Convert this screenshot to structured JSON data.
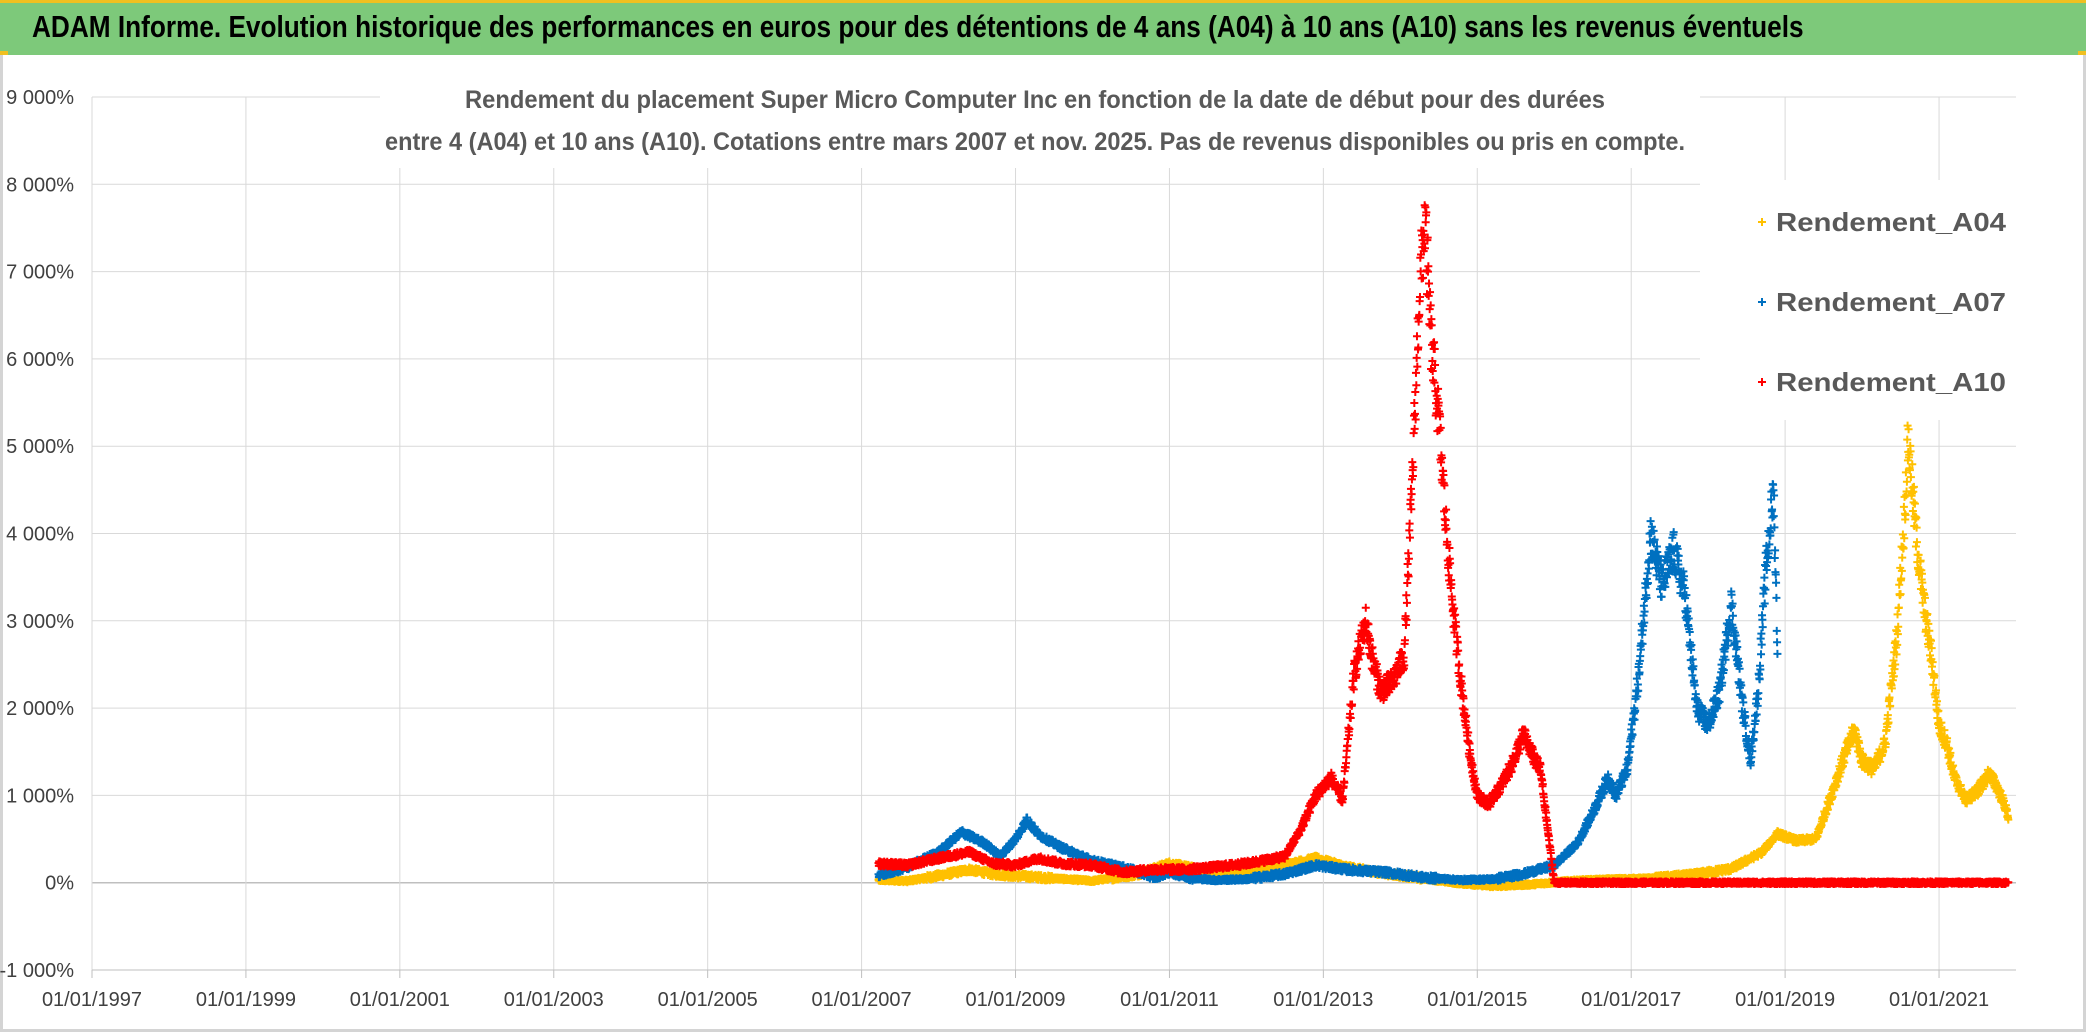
{
  "banner": {
    "title": "ADAM Informe. Evolution historique des performances en euros pour des détentions de 4 ans (A04) à 10 ans (A10) sans les revenus éventuels"
  },
  "colors": {
    "banner_bg": "#7dc97a",
    "grid": "#d9d9d9",
    "axis_text": "#404040",
    "title_text": "#595959"
  },
  "chart_data": {
    "type": "scatter",
    "marker": "plus",
    "title_line1": "Rendement du placement Super Micro Computer Inc en fonction de la date de début pour des durées",
    "title_line2": "entre 4 (A04) et 10 ans (A10). Cotations entre mars 2007 et nov. 2025. Pas de revenus disponibles ou pris en compte.",
    "ylim": [
      -10,
      90
    ],
    "y_ticks": [
      -10,
      0,
      10,
      20,
      30,
      40,
      50,
      60,
      70,
      80,
      90
    ],
    "y_tick_labels": [
      "-1 000%",
      "0%",
      "1 000%",
      "2 000%",
      "3 000%",
      "4 000%",
      "5 000%",
      "6 000%",
      "7 000%",
      "8 000%",
      "9 000%"
    ],
    "xlim": [
      1997.0,
      2022.0
    ],
    "x_ticks": [
      1997,
      1999,
      2001,
      2003,
      2005,
      2007,
      2009,
      2011,
      2013,
      2015,
      2017,
      2019,
      2021
    ],
    "x_tick_labels": [
      "01/01/1997",
      "01/01/1999",
      "01/01/2001",
      "01/01/2003",
      "01/01/2005",
      "01/01/2007",
      "01/01/2009",
      "01/01/2011",
      "01/01/2013",
      "01/01/2015",
      "01/01/2017",
      "01/01/2019",
      "01/01/2021"
    ],
    "grid": true,
    "legend_placement": "top-right",
    "series": [
      {
        "name": "Rendement_A04",
        "color": "#ffc000",
        "x_start": 2007.22,
        "x_end": 2021.9,
        "points": [
          [
            2007.22,
            0.3
          ],
          [
            2007.6,
            0.2
          ],
          [
            2008.0,
            0.8
          ],
          [
            2008.4,
            1.5
          ],
          [
            2008.7,
            1.0
          ],
          [
            2009.0,
            0.8
          ],
          [
            2009.5,
            0.5
          ],
          [
            2010.0,
            0.2
          ],
          [
            2010.6,
            1.0
          ],
          [
            2011.0,
            2.2
          ],
          [
            2011.5,
            1.3
          ],
          [
            2012.0,
            1.0
          ],
          [
            2012.5,
            2.0
          ],
          [
            2012.9,
            2.8
          ],
          [
            2013.3,
            1.8
          ],
          [
            2013.7,
            1.2
          ],
          [
            2014.2,
            0.6
          ],
          [
            2014.7,
            0.0
          ],
          [
            2015.2,
            -0.4
          ],
          [
            2015.7,
            -0.2
          ],
          [
            2016.2,
            0.2
          ],
          [
            2016.8,
            0.4
          ],
          [
            2017.3,
            0.5
          ],
          [
            2017.8,
            0.9
          ],
          [
            2018.3,
            1.6
          ],
          [
            2018.7,
            3.5
          ],
          [
            2018.9,
            5.6
          ],
          [
            2019.15,
            4.8
          ],
          [
            2019.4,
            5.0
          ],
          [
            2019.6,
            10.0
          ],
          [
            2019.75,
            14.0
          ],
          [
            2019.9,
            17.5
          ],
          [
            2020.0,
            14.0
          ],
          [
            2020.15,
            13.0
          ],
          [
            2020.3,
            16.0
          ],
          [
            2020.45,
            28.0
          ],
          [
            2020.55,
            42.0
          ],
          [
            2020.6,
            51.0
          ],
          [
            2020.7,
            40.0
          ],
          [
            2020.8,
            32.0
          ],
          [
            2020.9,
            26.0
          ],
          [
            2021.0,
            18.0
          ],
          [
            2021.1,
            16.0
          ],
          [
            2021.2,
            12.0
          ],
          [
            2021.35,
            9.5
          ],
          [
            2021.5,
            10.5
          ],
          [
            2021.65,
            12.5
          ],
          [
            2021.75,
            11.0
          ],
          [
            2021.85,
            9.0
          ],
          [
            2021.9,
            7.5
          ]
        ]
      },
      {
        "name": "Rendement_A07",
        "color": "#0070c0",
        "x_start": 2007.22,
        "x_end": 2018.9,
        "points": [
          [
            2007.22,
            0.8
          ],
          [
            2007.6,
            1.8
          ],
          [
            2008.0,
            3.5
          ],
          [
            2008.3,
            5.8
          ],
          [
            2008.6,
            4.5
          ],
          [
            2008.8,
            3.0
          ],
          [
            2009.0,
            5.0
          ],
          [
            2009.15,
            7.2
          ],
          [
            2009.3,
            5.5
          ],
          [
            2009.6,
            4.0
          ],
          [
            2010.0,
            2.5
          ],
          [
            2010.5,
            1.5
          ],
          [
            2010.8,
            0.6
          ],
          [
            2011.0,
            1.2
          ],
          [
            2011.3,
            0.5
          ],
          [
            2011.6,
            0.3
          ],
          [
            2012.0,
            0.4
          ],
          [
            2012.5,
            1.0
          ],
          [
            2012.9,
            2.0
          ],
          [
            2013.3,
            1.5
          ],
          [
            2013.8,
            1.2
          ],
          [
            2014.3,
            0.6
          ],
          [
            2014.8,
            0.3
          ],
          [
            2015.2,
            0.4
          ],
          [
            2015.6,
            1.0
          ],
          [
            2016.0,
            2.0
          ],
          [
            2016.3,
            4.5
          ],
          [
            2016.5,
            8.0
          ],
          [
            2016.7,
            12.0
          ],
          [
            2016.8,
            10.0
          ],
          [
            2016.95,
            13.0
          ],
          [
            2017.1,
            24.0
          ],
          [
            2017.25,
            40.0
          ],
          [
            2017.4,
            34.0
          ],
          [
            2017.55,
            38.0
          ],
          [
            2017.7,
            33.0
          ],
          [
            2017.85,
            20.0
          ],
          [
            2018.0,
            18.0
          ],
          [
            2018.15,
            22.0
          ],
          [
            2018.3,
            32.0
          ],
          [
            2018.45,
            20.0
          ],
          [
            2018.55,
            14.0
          ],
          [
            2018.65,
            22.0
          ],
          [
            2018.75,
            36.0
          ],
          [
            2018.85,
            45.0
          ],
          [
            2018.9,
            27.0
          ]
        ]
      },
      {
        "name": "Rendement_A10",
        "color": "#ff0000",
        "x_start": 2007.22,
        "x_end": 2021.9,
        "points": [
          [
            2007.22,
            2.2
          ],
          [
            2007.6,
            2.0
          ],
          [
            2008.0,
            2.8
          ],
          [
            2008.4,
            3.5
          ],
          [
            2008.7,
            2.2
          ],
          [
            2009.0,
            2.0
          ],
          [
            2009.3,
            2.8
          ],
          [
            2009.6,
            2.2
          ],
          [
            2010.0,
            2.0
          ],
          [
            2010.4,
            1.2
          ],
          [
            2010.8,
            1.5
          ],
          [
            2011.2,
            1.5
          ],
          [
            2011.6,
            1.8
          ],
          [
            2012.0,
            2.2
          ],
          [
            2012.5,
            3.0
          ],
          [
            2012.7,
            6.0
          ],
          [
            2012.9,
            10.0
          ],
          [
            2013.1,
            12.0
          ],
          [
            2013.25,
            9.5
          ],
          [
            2013.4,
            24.0
          ],
          [
            2013.55,
            30.0
          ],
          [
            2013.65,
            25.0
          ],
          [
            2013.75,
            22.0
          ],
          [
            2013.9,
            23.0
          ],
          [
            2014.05,
            26.0
          ],
          [
            2014.15,
            45.0
          ],
          [
            2014.25,
            68.0
          ],
          [
            2014.32,
            76.0
          ],
          [
            2014.4,
            62.0
          ],
          [
            2014.5,
            53.0
          ],
          [
            2014.6,
            40.0
          ],
          [
            2014.7,
            30.0
          ],
          [
            2014.8,
            22.0
          ],
          [
            2014.9,
            15.0
          ],
          [
            2015.0,
            10.0
          ],
          [
            2015.15,
            9.0
          ],
          [
            2015.3,
            11.0
          ],
          [
            2015.45,
            13.5
          ],
          [
            2015.6,
            17.0
          ],
          [
            2015.75,
            14.0
          ],
          [
            2015.82,
            13.0
          ],
          [
            2016.0,
            0.0
          ],
          [
            2021.9,
            0.0
          ]
        ]
      }
    ]
  }
}
